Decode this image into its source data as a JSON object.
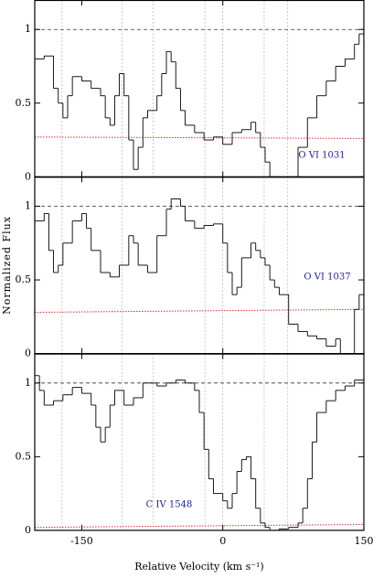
{
  "chart_data": [
    {
      "type": "line",
      "label": "O VI 1031",
      "color": "#000000",
      "xlim": [
        -200,
        150
      ],
      "ylim": [
        0,
        1.2
      ],
      "yticks": [
        0,
        0.5,
        1
      ],
      "continuum": 1,
      "markers": [
        -171,
        -107,
        -74,
        -19,
        0,
        44,
        69
      ],
      "x": [
        -200,
        -190,
        -180,
        -175,
        -170,
        -165,
        -160,
        -150,
        -140,
        -130,
        -125,
        -120,
        -115,
        -110,
        -105,
        -100,
        -95,
        -90,
        -85,
        -80,
        -70,
        -65,
        -60,
        -55,
        -50,
        -45,
        -40,
        -30,
        -20,
        -10,
        0,
        10,
        20,
        30,
        35,
        40,
        45,
        50,
        60,
        70,
        80,
        90,
        100,
        110,
        120,
        130,
        140,
        145
      ],
      "values": [
        0.8,
        0.82,
        0.6,
        0.5,
        0.4,
        0.55,
        0.68,
        0.65,
        0.6,
        0.55,
        0.4,
        0.35,
        0.55,
        0.7,
        0.55,
        0.25,
        0.05,
        0.2,
        0.4,
        0.45,
        0.55,
        0.7,
        0.85,
        0.78,
        0.6,
        0.45,
        0.35,
        0.3,
        0.25,
        0.27,
        0.22,
        0.3,
        0.32,
        0.37,
        0.3,
        0.2,
        0.1,
        0.0,
        0.0,
        0.0,
        0.2,
        0.4,
        0.55,
        0.65,
        0.75,
        0.8,
        0.9,
        0.97
      ],
      "error": {
        "color": "#e03030",
        "x": [
          -200,
          150
        ],
        "values": [
          0.27,
          0.26
        ]
      }
    },
    {
      "type": "line",
      "label": "O VI 1037",
      "ylabel": "Normalized Flux",
      "color": "#000000",
      "xlim": [
        -200,
        150
      ],
      "ylim": [
        0,
        1.2
      ],
      "yticks": [
        0,
        0.5,
        1
      ],
      "continuum": 1,
      "markers": [
        -171,
        -107,
        -19,
        0,
        44,
        69
      ],
      "x": [
        -200,
        -190,
        -185,
        -180,
        -175,
        -170,
        -160,
        -150,
        -145,
        -140,
        -130,
        -120,
        -110,
        -100,
        -95,
        -90,
        -80,
        -70,
        -60,
        -55,
        -45,
        -40,
        -30,
        -20,
        -10,
        0,
        5,
        10,
        15,
        20,
        30,
        35,
        40,
        45,
        50,
        55,
        60,
        70,
        80,
        90,
        100,
        110,
        120,
        125,
        135,
        140,
        145
      ],
      "values": [
        0.9,
        0.95,
        0.7,
        0.55,
        0.6,
        0.75,
        0.9,
        0.95,
        0.85,
        0.7,
        0.55,
        0.52,
        0.6,
        0.8,
        0.75,
        0.6,
        0.55,
        0.8,
        0.98,
        1.05,
        1.0,
        0.9,
        0.85,
        0.87,
        0.88,
        0.75,
        0.55,
        0.4,
        0.45,
        0.65,
        0.75,
        0.7,
        0.65,
        0.6,
        0.5,
        0.45,
        0.4,
        0.2,
        0.15,
        0.12,
        0.1,
        0.05,
        0.1,
        0.0,
        0.0,
        0.3,
        0.4
      ],
      "error": {
        "color": "#e03030",
        "x": [
          -200,
          150
        ],
        "values": [
          0.28,
          0.3
        ]
      }
    },
    {
      "type": "line",
      "label": "C IV 1548",
      "xlabel": "Relative Velocity (km s⁻¹)",
      "color": "#000000",
      "xlim": [
        -200,
        150
      ],
      "ylim": [
        0,
        1.2
      ],
      "yticks": [
        0,
        0.5,
        1
      ],
      "xticks": [
        -150,
        0,
        150
      ],
      "continuum": 1,
      "markers": [
        -171,
        -107,
        -74,
        -19,
        0,
        44,
        69
      ],
      "x": [
        -200,
        -195,
        -190,
        -180,
        -170,
        -160,
        -150,
        -140,
        -135,
        -130,
        -125,
        -120,
        -115,
        -105,
        -95,
        -85,
        -70,
        -60,
        -50,
        -40,
        -30,
        -25,
        -20,
        -15,
        -10,
        0,
        5,
        10,
        15,
        20,
        25,
        30,
        35,
        40,
        45,
        50,
        60,
        70,
        80,
        85,
        90,
        95,
        100,
        110,
        120,
        130,
        140
      ],
      "values": [
        1.05,
        0.95,
        0.85,
        0.88,
        0.92,
        0.97,
        0.93,
        0.85,
        0.7,
        0.6,
        0.7,
        0.85,
        0.95,
        0.85,
        0.9,
        1.0,
        0.98,
        1.0,
        1.02,
        1.0,
        0.95,
        0.8,
        0.55,
        0.35,
        0.25,
        0.2,
        0.15,
        0.25,
        0.4,
        0.48,
        0.5,
        0.35,
        0.15,
        0.05,
        0.02,
        0.0,
        0.01,
        0.02,
        0.05,
        0.15,
        0.35,
        0.6,
        0.8,
        0.88,
        0.95,
        0.98,
        1.02
      ],
      "error": {
        "color": "#e03030",
        "x": [
          -200,
          150
        ],
        "values": [
          0.02,
          0.04
        ]
      }
    }
  ]
}
